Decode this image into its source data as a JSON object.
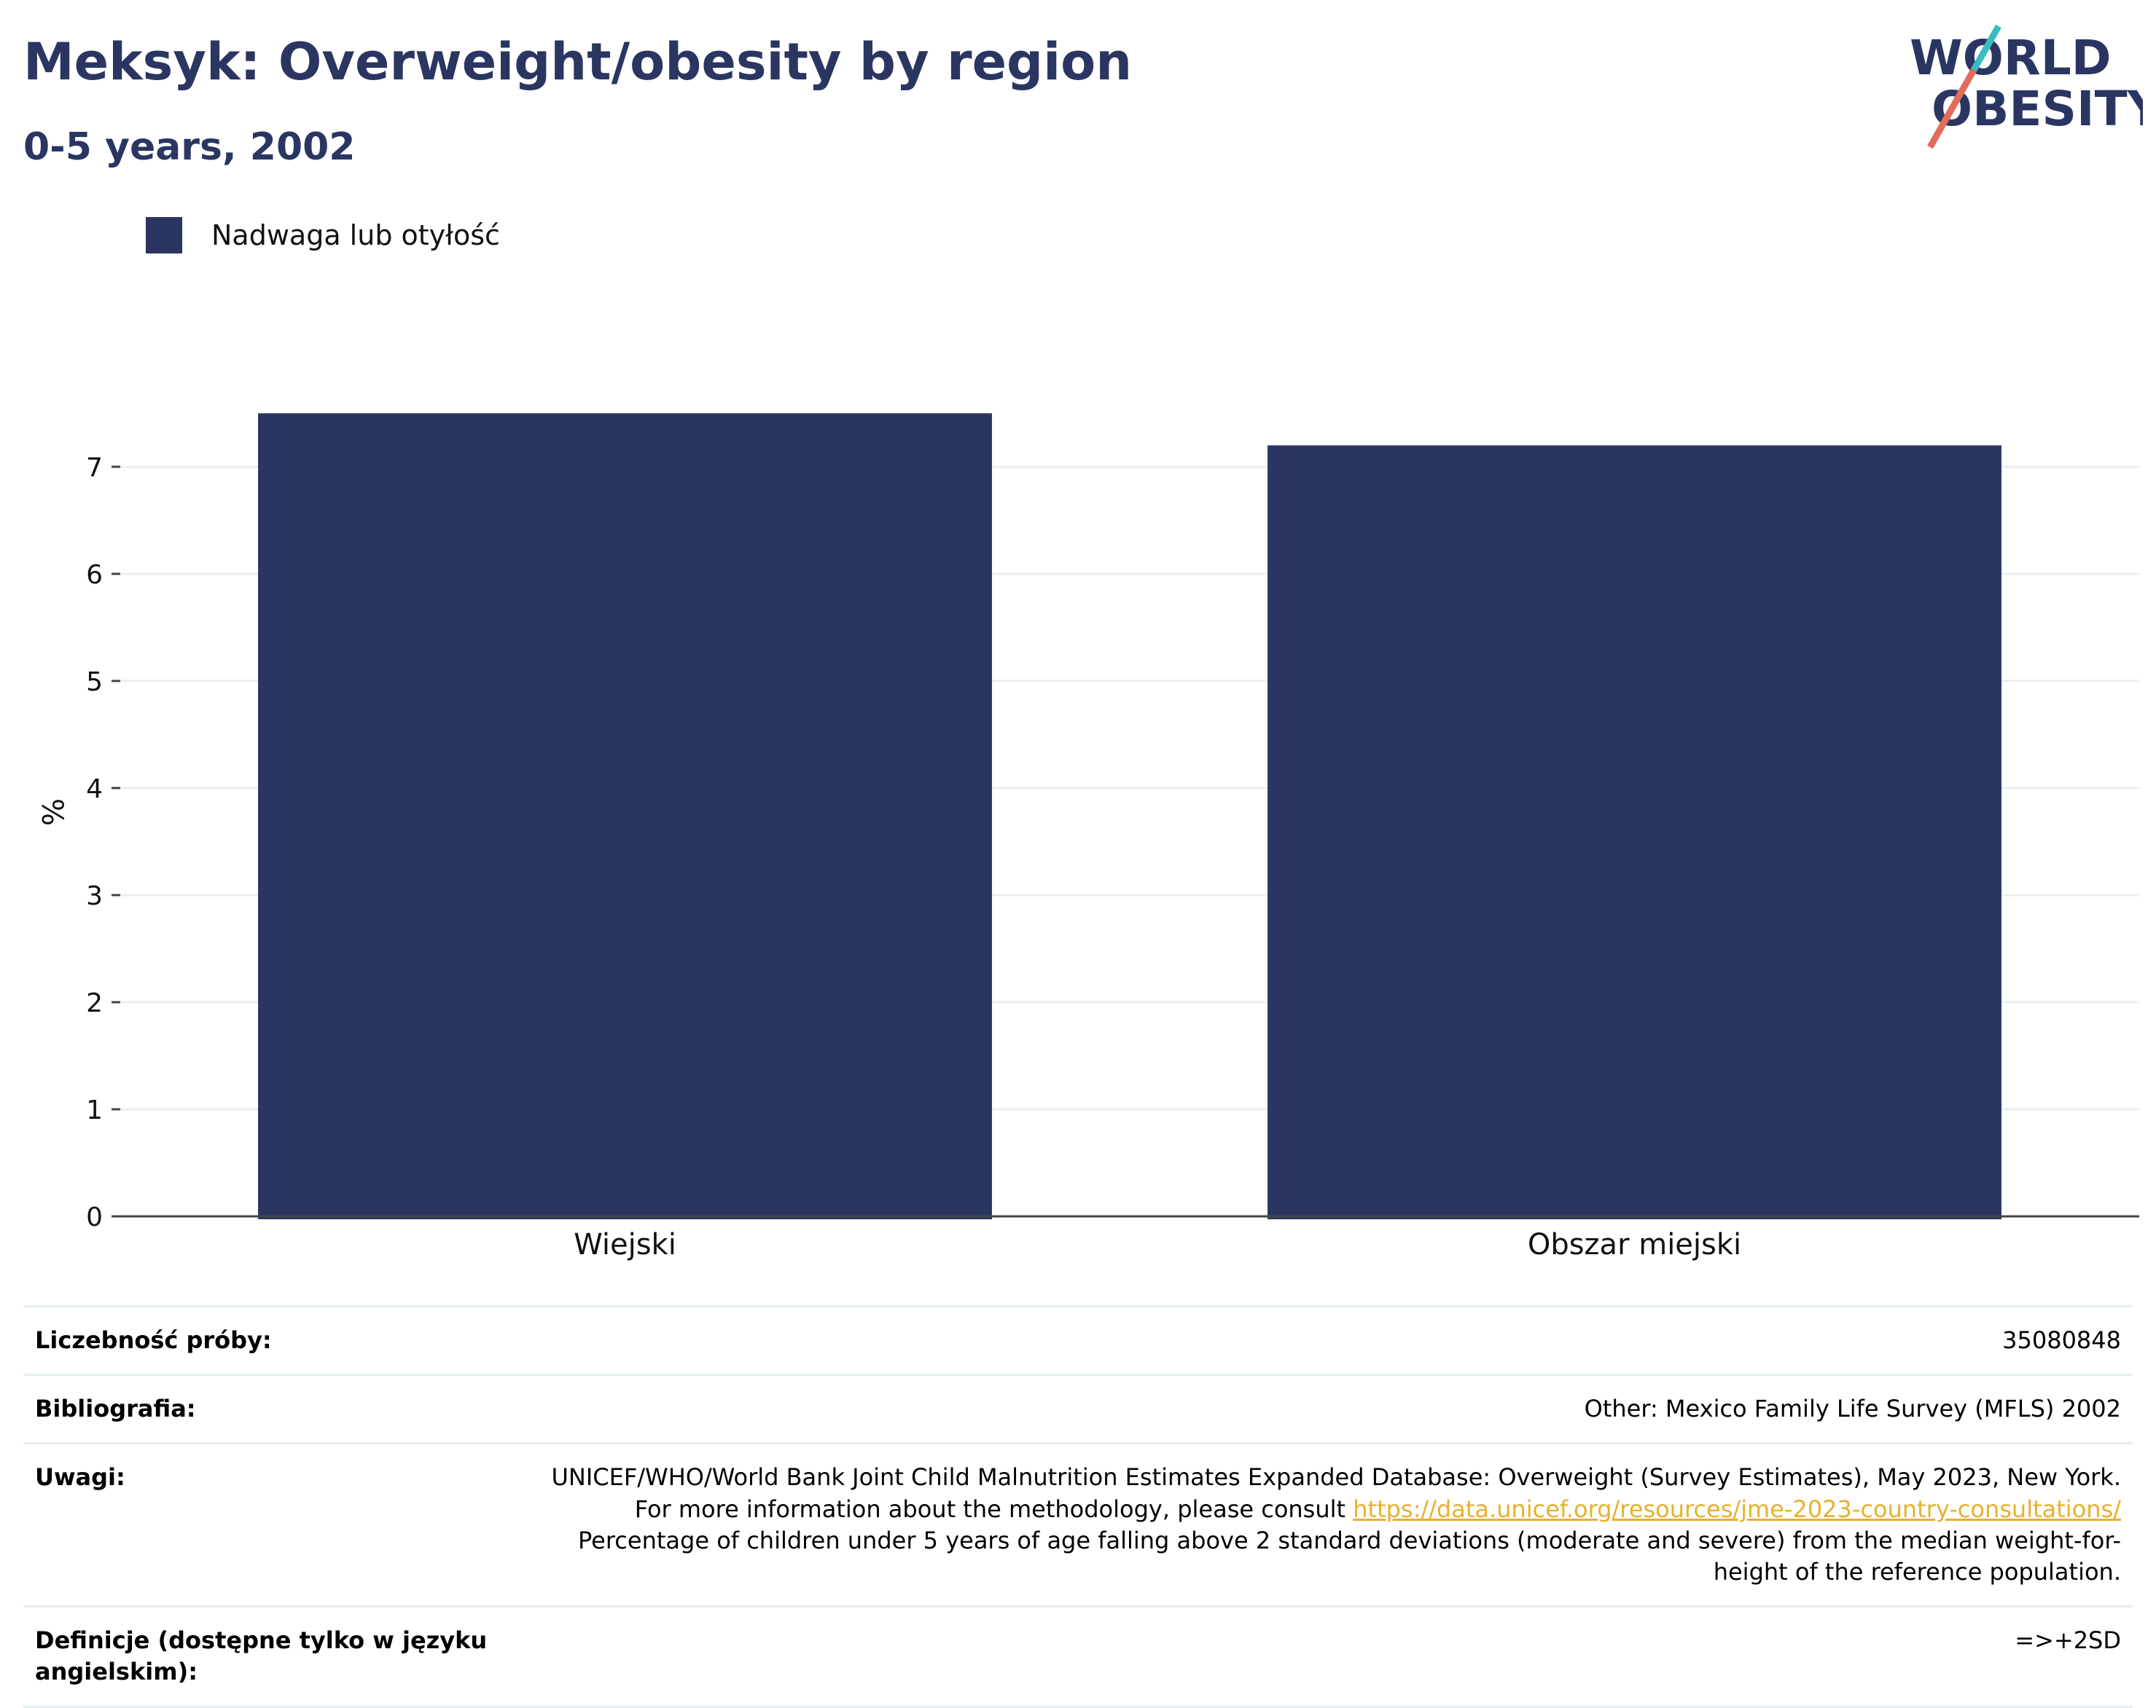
{
  "header": {
    "title": "Meksyk: Overweight/obesity by region",
    "subtitle": "0-5 years, 2002"
  },
  "logo": {
    "line1": "WORLD",
    "line2": "OBESITY"
  },
  "colors": {
    "bar": "#2a3661",
    "accent_teal": "#3bbdc0",
    "accent_red": "#e36b5a"
  },
  "chart_data": {
    "type": "bar",
    "categories": [
      "Wiejski",
      "Obszar miejski"
    ],
    "series": [
      {
        "name": "Nadwaga lub otyłość",
        "values": [
          7.5,
          7.2
        ]
      }
    ],
    "title": "",
    "xlabel": "",
    "ylabel": "%",
    "ylim": [
      0,
      7.55
    ],
    "yticks": [
      0,
      1,
      2,
      3,
      4,
      5,
      6,
      7
    ],
    "grid": true,
    "legend": "top-left"
  },
  "info": {
    "sample_label": "Liczebność próby:",
    "sample_value": "35080848",
    "bib_label": "Bibliografia:",
    "bib_value": "Other: Mexico Family Life Survey (MFLS) 2002",
    "notes_label": "Uwagi:",
    "notes_text1": "UNICEF/WHO/World Bank Joint Child Malnutrition Estimates Expanded Database: Overweight (Survey Estimates), May 2023, New York. For more information about the methodology, please consult",
    "notes_link": "https://data.unicef.org/resources/jme-2023-country-consultations/",
    "notes_text2": "Percentage of children under 5 years of age falling above 2 standard deviations (moderate and severe) from the median weight-for-height of the reference population.",
    "def_label": "Definicje (dostępne tylko w języku angielskim):",
    "def_value": "=>+2SD"
  }
}
